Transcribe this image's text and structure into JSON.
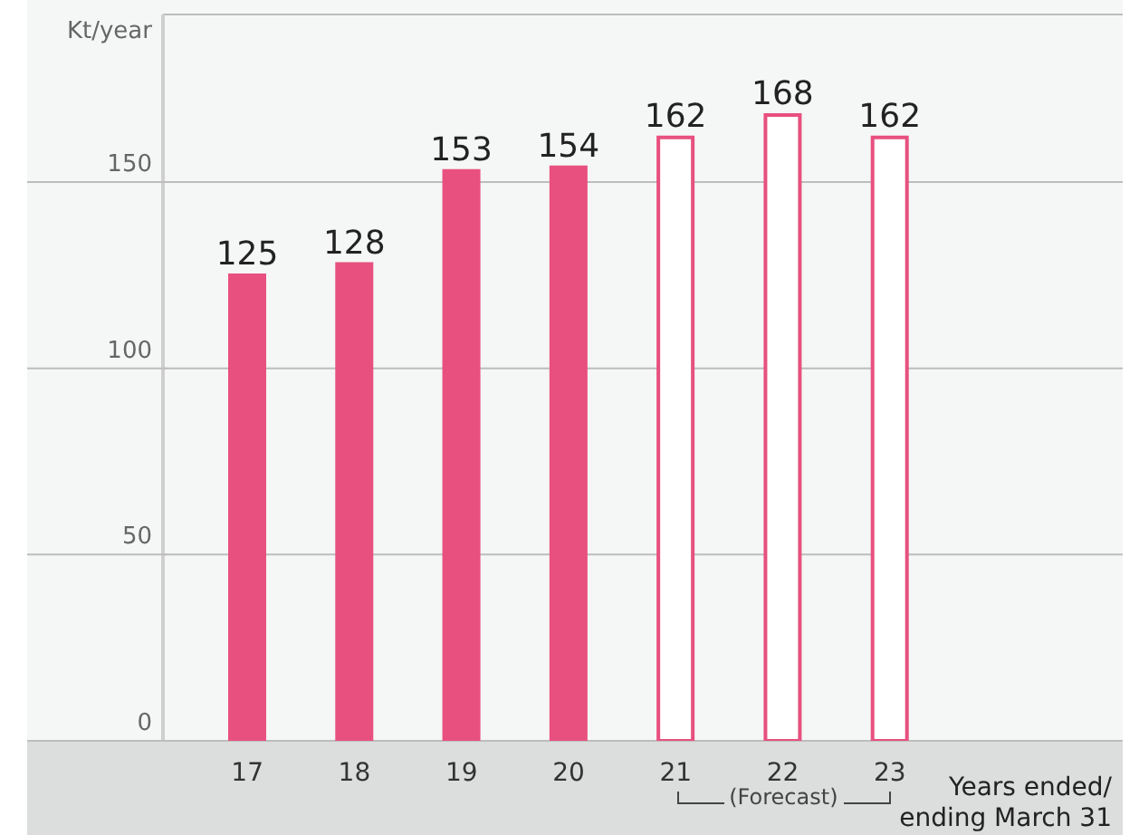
{
  "chart_data": {
    "type": "bar",
    "ylabel": "Kt/year",
    "xlabel": "Years ended/\nending March 31",
    "categories": [
      "17",
      "18",
      "19",
      "20",
      "21",
      "22",
      "23"
    ],
    "values": [
      125,
      128,
      153,
      154,
      162,
      168,
      162
    ],
    "color": "#e8507f",
    "colors": [
      "#e8507f",
      "#e8507f",
      "#e8507f",
      "#e8507f",
      "#ffffff",
      "#ffffff",
      "#ffffff"
    ],
    "ylim": [
      0,
      195
    ],
    "yticks": [
      0,
      50,
      100,
      150
    ],
    "grid": "y",
    "data_labels": true,
    "annotations": [
      "(Forecast)"
    ]
  }
}
